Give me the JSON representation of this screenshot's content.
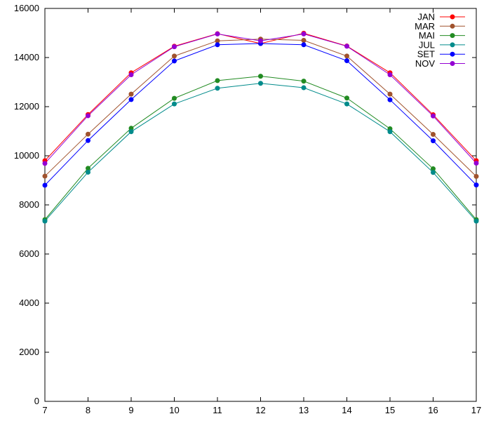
{
  "chart_data": {
    "type": "line",
    "title": "",
    "xlabel": "",
    "ylabel": "",
    "x": [
      7,
      8,
      9,
      10,
      11,
      12,
      13,
      14,
      15,
      16,
      17
    ],
    "xlim": [
      7,
      17
    ],
    "ylim": [
      0,
      16000
    ],
    "xticks": [
      7,
      8,
      9,
      10,
      11,
      12,
      13,
      14,
      15,
      16,
      17
    ],
    "yticks": [
      0,
      2000,
      4000,
      6000,
      8000,
      10000,
      12000,
      14000,
      16000
    ],
    "grid": false,
    "legend_position": "top-right",
    "series": [
      {
        "name": "JAN",
        "color": "#ff0000",
        "values": [
          9800,
          11680,
          13380,
          14460,
          14970,
          14570,
          14990,
          14470,
          13380,
          11670,
          9800
        ]
      },
      {
        "name": "MAR",
        "color": "#a0522d",
        "values": [
          9170,
          10880,
          12510,
          14060,
          14680,
          14750,
          14700,
          14060,
          12510,
          10870,
          9160
        ]
      },
      {
        "name": "MAI",
        "color": "#228b22",
        "values": [
          7400,
          9490,
          11120,
          12340,
          13060,
          13240,
          13040,
          12350,
          11100,
          9470,
          7400
        ]
      },
      {
        "name": "JUL",
        "color": "#008b8b",
        "values": [
          7340,
          9330,
          10980,
          12110,
          12750,
          12950,
          12770,
          12110,
          10980,
          9320,
          7340
        ]
      },
      {
        "name": "SET",
        "color": "#0000ff",
        "values": [
          8800,
          10620,
          12290,
          13860,
          14520,
          14570,
          14520,
          13870,
          12280,
          10610,
          8810
        ]
      },
      {
        "name": "NOV",
        "color": "#9400d3",
        "values": [
          9690,
          11630,
          13300,
          14440,
          14960,
          14680,
          14960,
          14460,
          13300,
          11620,
          9700
        ]
      }
    ]
  }
}
